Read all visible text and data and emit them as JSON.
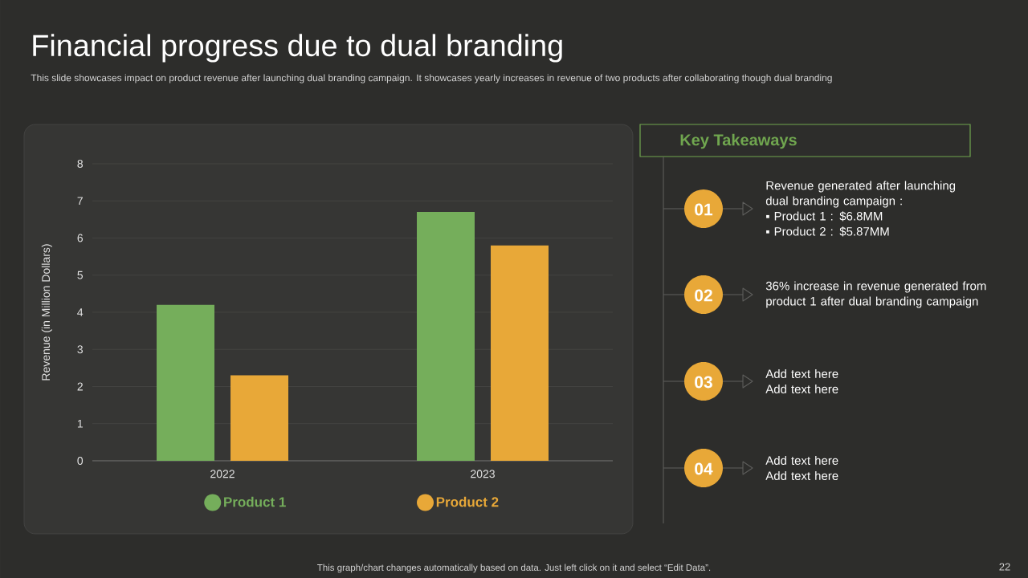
{
  "chart_data": {
    "type": "bar",
    "title": "Financial progress due to dual branding",
    "subtitle": "This slide showcases impact on product revenue after launching dual branding campaign. It showcases yearly increases in revenue of two products after collaborating though dual branding",
    "ylabel": "Revenue (in Million Dollars)",
    "categories": [
      "2022",
      "2023"
    ],
    "series": [
      {
        "name": "Product 1",
        "color": "#75ae5b",
        "values": [
          4.2,
          6.7
        ]
      },
      {
        "name": "Product 2",
        "color": "#e8a838",
        "values": [
          2.3,
          5.8
        ]
      }
    ],
    "ylim": [
      0,
      8
    ],
    "yticks": [
      0,
      1,
      2,
      3,
      4,
      5,
      6,
      7,
      8
    ],
    "grid": "y",
    "legend": "bottom",
    "annotations": [
      "This graph/chart changes automatically based on data. Just left click on it and select “Edit Data”.",
      "22",
      "Key Takeaways",
      "01",
      "Revenue generated after launching dual branding campaign :",
      "▪  Product 1 : $6.8MM",
      "▪  Product 2 : $5.87MM",
      "02",
      "36% increase in revenue generated from product 1 after dual branding campaign",
      "03",
      "Add text here",
      "Add text here",
      "04",
      "Add text here",
      "Add text here"
    ]
  }
}
